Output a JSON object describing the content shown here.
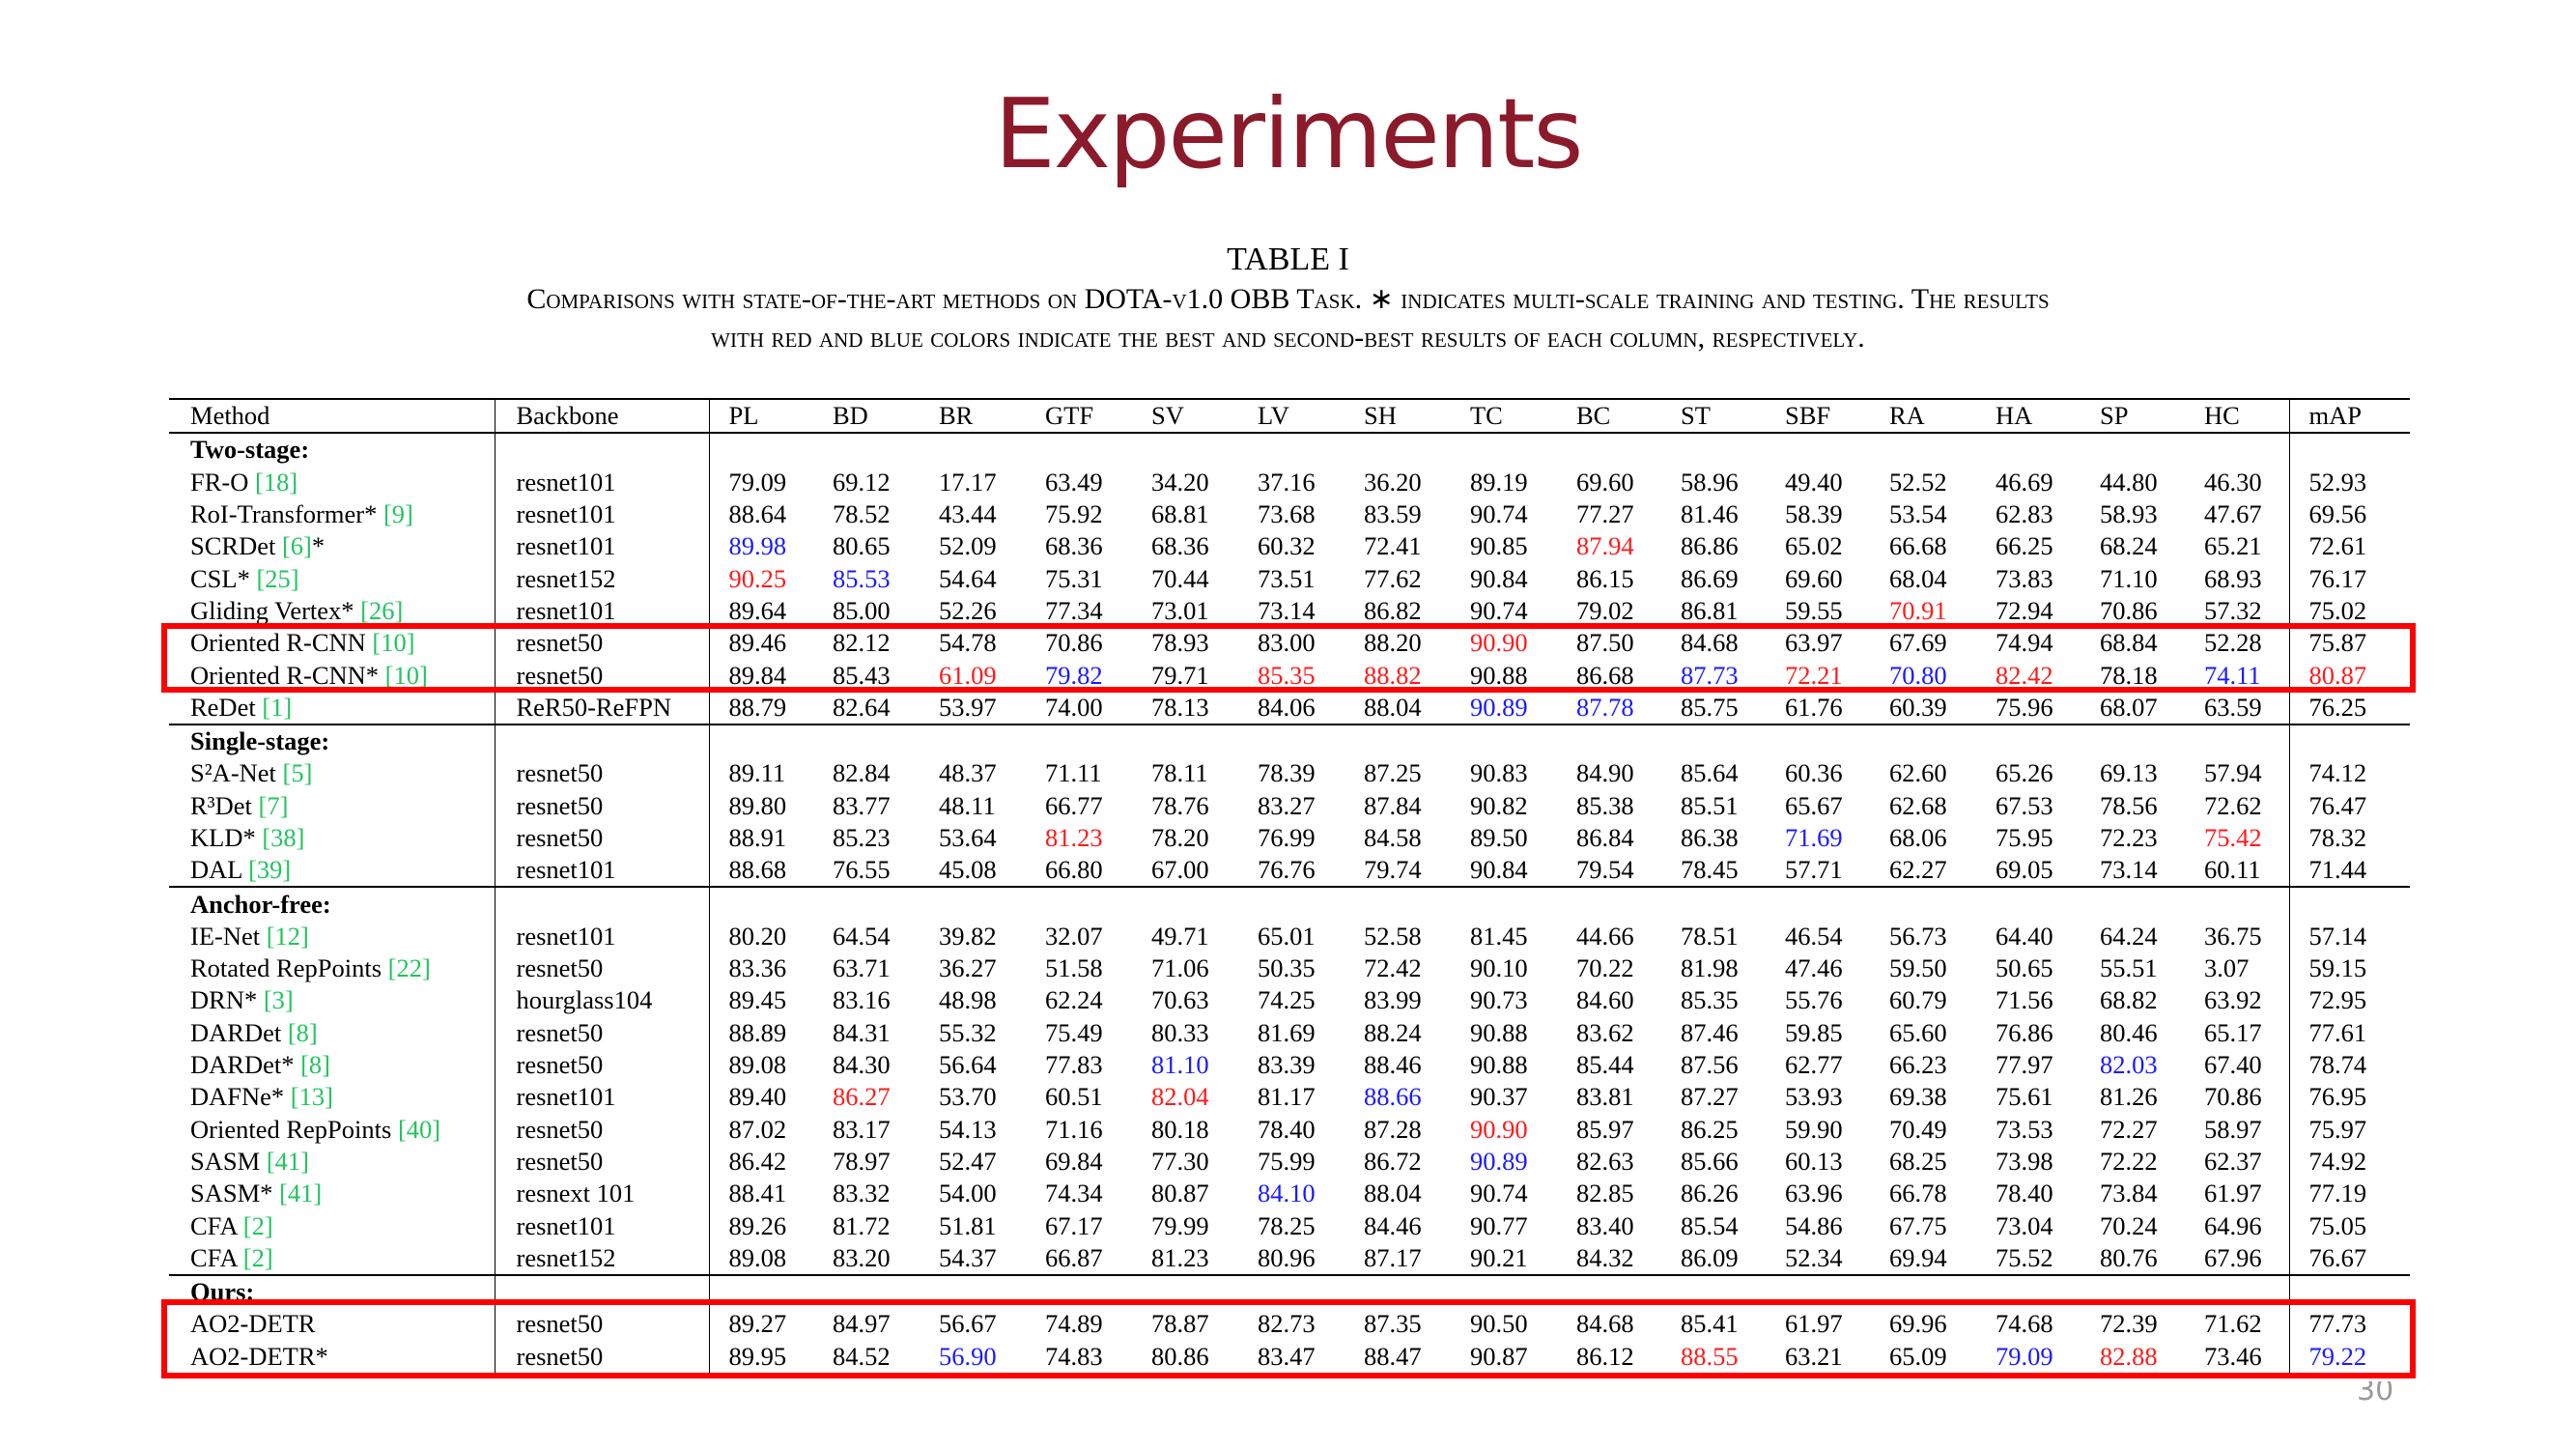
{
  "slide": {
    "title": "Experiments",
    "table_label": "TABLE I",
    "caption_line1": "Comparisons with state-of-the-art methods on DOTA-v1.0 OBB Task. ∗ indicates multi-scale training and testing. The results",
    "caption_line2": "with red and blue colors indicate the best and second-best results of each column, respectively.",
    "page_number": "30"
  },
  "colors": {
    "title": "#8b1a2b",
    "best": "#ff1a1a",
    "second_best": "#1a1aff",
    "citation": "#22c55e",
    "highlight_box": "#ff0000"
  },
  "table": {
    "headers": [
      "Method",
      "Backbone",
      "PL",
      "BD",
      "BR",
      "GTF",
      "SV",
      "LV",
      "SH",
      "TC",
      "BC",
      "ST",
      "SBF",
      "RA",
      "HA",
      "SP",
      "HC",
      "mAP"
    ],
    "groups": [
      {
        "label": "Two-stage:",
        "rows": [
          {
            "name": "FR-O ",
            "ref": "[18]",
            "suffix": "",
            "backbone": "resnet101",
            "values": [
              "79.09",
              "69.12",
              "17.17",
              "63.49",
              "34.20",
              "37.16",
              "36.20",
              "89.19",
              "69.60",
              "58.96",
              "49.40",
              "52.52",
              "46.69",
              "44.80",
              "46.30",
              "52.93"
            ],
            "red": [],
            "blue": []
          },
          {
            "name": "RoI-Transformer* ",
            "ref": "[9]",
            "suffix": "",
            "backbone": "resnet101",
            "values": [
              "88.64",
              "78.52",
              "43.44",
              "75.92",
              "68.81",
              "73.68",
              "83.59",
              "90.74",
              "77.27",
              "81.46",
              "58.39",
              "53.54",
              "62.83",
              "58.93",
              "47.67",
              "69.56"
            ],
            "red": [],
            "blue": []
          },
          {
            "name": "SCRDet ",
            "ref": "[6]",
            "suffix": "*",
            "backbone": "resnet101",
            "values": [
              "89.98",
              "80.65",
              "52.09",
              "68.36",
              "68.36",
              "60.32",
              "72.41",
              "90.85",
              "87.94",
              "86.86",
              "65.02",
              "66.68",
              "66.25",
              "68.24",
              "65.21",
              "72.61"
            ],
            "red": [
              8
            ],
            "blue": [
              0
            ]
          },
          {
            "name": "CSL* ",
            "ref": "[25]",
            "suffix": "",
            "backbone": "resnet152",
            "values": [
              "90.25",
              "85.53",
              "54.64",
              "75.31",
              "70.44",
              "73.51",
              "77.62",
              "90.84",
              "86.15",
              "86.69",
              "69.60",
              "68.04",
              "73.83",
              "71.10",
              "68.93",
              "76.17"
            ],
            "red": [
              0
            ],
            "blue": [
              1
            ]
          },
          {
            "name": "Gliding Vertex* ",
            "ref": "[26]",
            "suffix": "",
            "backbone": "resnet101",
            "values": [
              "89.64",
              "85.00",
              "52.26",
              "77.34",
              "73.01",
              "73.14",
              "86.82",
              "90.74",
              "79.02",
              "86.81",
              "59.55",
              "70.91",
              "72.94",
              "70.86",
              "57.32",
              "75.02"
            ],
            "red": [
              11
            ],
            "blue": []
          },
          {
            "name": "Oriented R-CNN ",
            "ref": "[10]",
            "suffix": "",
            "backbone": "resnet50",
            "values": [
              "89.46",
              "82.12",
              "54.78",
              "70.86",
              "78.93",
              "83.00",
              "88.20",
              "90.90",
              "87.50",
              "84.68",
              "63.97",
              "67.69",
              "74.94",
              "68.84",
              "52.28",
              "75.87"
            ],
            "red": [
              7
            ],
            "blue": []
          },
          {
            "name": "Oriented R-CNN* ",
            "ref": "[10]",
            "suffix": "",
            "backbone": "resnet50",
            "values": [
              "89.84",
              "85.43",
              "61.09",
              "79.82",
              "79.71",
              "85.35",
              "88.82",
              "90.88",
              "86.68",
              "87.73",
              "72.21",
              "70.80",
              "82.42",
              "78.18",
              "74.11",
              "80.87"
            ],
            "red": [
              2,
              5,
              6,
              10,
              12,
              15
            ],
            "blue": [
              3,
              9,
              11,
              14
            ]
          },
          {
            "name": "ReDet ",
            "ref": "[1]",
            "suffix": "",
            "backbone": "ReR50-ReFPN",
            "values": [
              "88.79",
              "82.64",
              "53.97",
              "74.00",
              "78.13",
              "84.06",
              "88.04",
              "90.89",
              "87.78",
              "85.75",
              "61.76",
              "60.39",
              "75.96",
              "68.07",
              "63.59",
              "76.25"
            ],
            "red": [],
            "blue": [
              7,
              8
            ]
          }
        ]
      },
      {
        "label": "Single-stage:",
        "rows": [
          {
            "name": "S²A-Net ",
            "ref": "[5]",
            "suffix": "",
            "backbone": "resnet50",
            "values": [
              "89.11",
              "82.84",
              "48.37",
              "71.11",
              "78.11",
              "78.39",
              "87.25",
              "90.83",
              "84.90",
              "85.64",
              "60.36",
              "62.60",
              "65.26",
              "69.13",
              "57.94",
              "74.12"
            ],
            "red": [],
            "blue": []
          },
          {
            "name": "R³Det ",
            "ref": "[7]",
            "suffix": "",
            "backbone": "resnet50",
            "values": [
              "89.80",
              "83.77",
              "48.11",
              "66.77",
              "78.76",
              "83.27",
              "87.84",
              "90.82",
              "85.38",
              "85.51",
              "65.67",
              "62.68",
              "67.53",
              "78.56",
              "72.62",
              "76.47"
            ],
            "red": [],
            "blue": []
          },
          {
            "name": "KLD* ",
            "ref": "[38]",
            "suffix": "",
            "backbone": "resnet50",
            "values": [
              "88.91",
              "85.23",
              "53.64",
              "81.23",
              "78.20",
              "76.99",
              "84.58",
              "89.50",
              "86.84",
              "86.38",
              "71.69",
              "68.06",
              "75.95",
              "72.23",
              "75.42",
              "78.32"
            ],
            "red": [
              3,
              14
            ],
            "blue": [
              10
            ]
          },
          {
            "name": "DAL ",
            "ref": "[39]",
            "suffix": "",
            "backbone": "resnet101",
            "values": [
              "88.68",
              "76.55",
              "45.08",
              "66.80",
              "67.00",
              "76.76",
              "79.74",
              "90.84",
              "79.54",
              "78.45",
              "57.71",
              "62.27",
              "69.05",
              "73.14",
              "60.11",
              "71.44"
            ],
            "red": [],
            "blue": []
          }
        ]
      },
      {
        "label": "Anchor-free:",
        "rows": [
          {
            "name": "IE-Net ",
            "ref": "[12]",
            "suffix": "",
            "backbone": "resnet101",
            "values": [
              "80.20",
              "64.54",
              "39.82",
              "32.07",
              "49.71",
              "65.01",
              "52.58",
              "81.45",
              "44.66",
              "78.51",
              "46.54",
              "56.73",
              "64.40",
              "64.24",
              "36.75",
              "57.14"
            ],
            "red": [],
            "blue": []
          },
          {
            "name": "Rotated RepPoints ",
            "ref": "[22]",
            "suffix": "",
            "backbone": "resnet50",
            "values": [
              "83.36",
              "63.71",
              "36.27",
              "51.58",
              "71.06",
              "50.35",
              "72.42",
              "90.10",
              "70.22",
              "81.98",
              "47.46",
              "59.50",
              "50.65",
              "55.51",
              "3.07",
              "59.15"
            ],
            "red": [],
            "blue": []
          },
          {
            "name": "DRN* ",
            "ref": "[3]",
            "suffix": "",
            "backbone": "hourglass104",
            "values": [
              "89.45",
              "83.16",
              "48.98",
              "62.24",
              "70.63",
              "74.25",
              "83.99",
              "90.73",
              "84.60",
              "85.35",
              "55.76",
              "60.79",
              "71.56",
              "68.82",
              "63.92",
              "72.95"
            ],
            "red": [],
            "blue": []
          },
          {
            "name": "DARDet ",
            "ref": "[8]",
            "suffix": "",
            "backbone": "resnet50",
            "values": [
              "88.89",
              "84.31",
              "55.32",
              "75.49",
              "80.33",
              "81.69",
              "88.24",
              "90.88",
              "83.62",
              "87.46",
              "59.85",
              "65.60",
              "76.86",
              "80.46",
              "65.17",
              "77.61"
            ],
            "red": [],
            "blue": []
          },
          {
            "name": "DARDet* ",
            "ref": "[8]",
            "suffix": "",
            "backbone": "resnet50",
            "values": [
              "89.08",
              "84.30",
              "56.64",
              "77.83",
              "81.10",
              "83.39",
              "88.46",
              "90.88",
              "85.44",
              "87.56",
              "62.77",
              "66.23",
              "77.97",
              "82.03",
              "67.40",
              "78.74"
            ],
            "red": [],
            "blue": [
              4,
              13
            ]
          },
          {
            "name": "DAFNe* ",
            "ref": "[13]",
            "suffix": "",
            "backbone": "resnet101",
            "values": [
              "89.40",
              "86.27",
              "53.70",
              "60.51",
              "82.04",
              "81.17",
              "88.66",
              "90.37",
              "83.81",
              "87.27",
              "53.93",
              "69.38",
              "75.61",
              "81.26",
              "70.86",
              "76.95"
            ],
            "red": [
              1,
              4
            ],
            "blue": [
              6
            ]
          },
          {
            "name": "Oriented RepPoints ",
            "ref": "[40]",
            "suffix": "",
            "backbone": "resnet50",
            "values": [
              "87.02",
              "83.17",
              "54.13",
              "71.16",
              "80.18",
              "78.40",
              "87.28",
              "90.90",
              "85.97",
              "86.25",
              "59.90",
              "70.49",
              "73.53",
              "72.27",
              "58.97",
              "75.97"
            ],
            "red": [
              7
            ],
            "blue": []
          },
          {
            "name": "SASM ",
            "ref": "[41]",
            "suffix": "",
            "backbone": "resnet50",
            "values": [
              "86.42",
              "78.97",
              "52.47",
              "69.84",
              "77.30",
              "75.99",
              "86.72",
              "90.89",
              "82.63",
              "85.66",
              "60.13",
              "68.25",
              "73.98",
              "72.22",
              "62.37",
              "74.92"
            ],
            "red": [],
            "blue": [
              7
            ]
          },
          {
            "name": "SASM* ",
            "ref": "[41]",
            "suffix": "",
            "backbone": "resnext 101",
            "values": [
              "88.41",
              "83.32",
              "54.00",
              "74.34",
              "80.87",
              "84.10",
              "88.04",
              "90.74",
              "82.85",
              "86.26",
              "63.96",
              "66.78",
              "78.40",
              "73.84",
              "61.97",
              "77.19"
            ],
            "red": [],
            "blue": [
              5
            ]
          },
          {
            "name": "CFA ",
            "ref": "[2]",
            "suffix": "",
            "backbone": "resnet101",
            "values": [
              "89.26",
              "81.72",
              "51.81",
              "67.17",
              "79.99",
              "78.25",
              "84.46",
              "90.77",
              "83.40",
              "85.54",
              "54.86",
              "67.75",
              "73.04",
              "70.24",
              "64.96",
              "75.05"
            ],
            "red": [],
            "blue": []
          },
          {
            "name": "CFA ",
            "ref": "[2]",
            "suffix": "",
            "backbone": "resnet152",
            "values": [
              "89.08",
              "83.20",
              "54.37",
              "66.87",
              "81.23",
              "80.96",
              "87.17",
              "90.21",
              "84.32",
              "86.09",
              "52.34",
              "69.94",
              "75.52",
              "80.76",
              "67.96",
              "76.67"
            ],
            "red": [],
            "blue": []
          }
        ]
      },
      {
        "label": "Ours:",
        "rows": [
          {
            "name": "AO2-DETR",
            "ref": "",
            "suffix": "",
            "backbone": "resnet50",
            "values": [
              "89.27",
              "84.97",
              "56.67",
              "74.89",
              "78.87",
              "82.73",
              "87.35",
              "90.50",
              "84.68",
              "85.41",
              "61.97",
              "69.96",
              "74.68",
              "72.39",
              "71.62",
              "77.73"
            ],
            "red": [],
            "blue": []
          },
          {
            "name": "AO2-DETR*",
            "ref": "",
            "suffix": "",
            "backbone": "resnet50",
            "values": [
              "89.95",
              "84.52",
              "56.90",
              "74.83",
              "80.86",
              "83.47",
              "88.47",
              "90.87",
              "86.12",
              "88.55",
              "63.21",
              "65.09",
              "79.09",
              "82.88",
              "73.46",
              "79.22"
            ],
            "red": [
              9,
              13
            ],
            "blue": [
              2,
              12,
              15
            ]
          }
        ]
      }
    ]
  }
}
